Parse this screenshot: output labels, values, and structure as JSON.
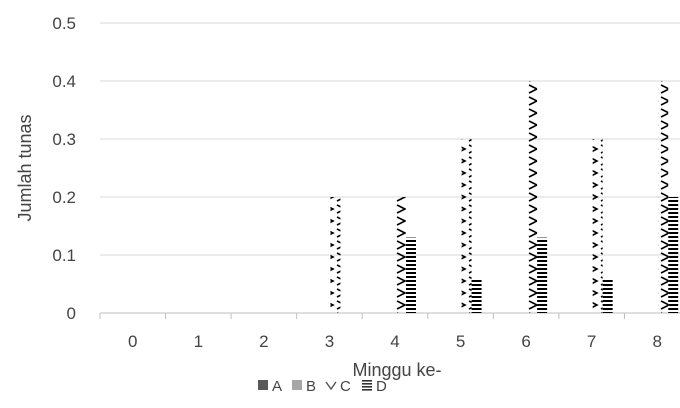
{
  "chart_data": {
    "type": "bar",
    "title": "",
    "xlabel": "Minggu ke-",
    "ylabel": "Jumlah tunas",
    "categories": [
      "0",
      "1",
      "2",
      "3",
      "4",
      "5",
      "6",
      "7",
      "8"
    ],
    "ylim": [
      0,
      0.5
    ],
    "yticks": [
      "0",
      "0.1",
      "0.2",
      "0.3",
      "0.4",
      "0.5"
    ],
    "grid": true,
    "legend_position": "bottom",
    "series": [
      {
        "name": "A",
        "pattern": "solid",
        "color": "#595959",
        "values": [
          0,
          0,
          0,
          0,
          0,
          0,
          0,
          0,
          0
        ]
      },
      {
        "name": "B",
        "pattern": "solid",
        "color": "#a6a6a6",
        "values": [
          0,
          0,
          0,
          0,
          0,
          0,
          0,
          0,
          0
        ]
      },
      {
        "name": "C",
        "pattern": "zigzag",
        "color": "#000000",
        "values": [
          0,
          0,
          0,
          0.2,
          0.2,
          0.3,
          0.4,
          0.3,
          0.4
        ]
      },
      {
        "name": "D",
        "pattern": "horizontal-lines",
        "color": "#000000",
        "values": [
          0,
          0,
          0,
          0,
          0.13,
          0.06,
          0.13,
          0.06,
          0.2
        ]
      }
    ]
  }
}
